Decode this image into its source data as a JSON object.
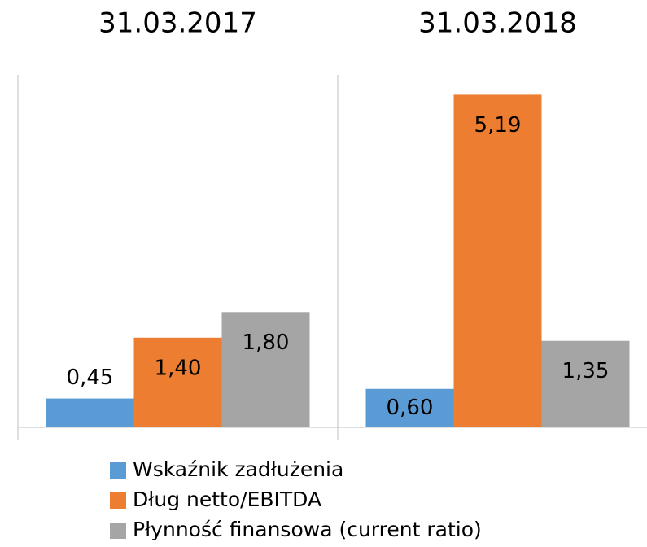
{
  "chart_data": {
    "type": "bar",
    "categories": [
      "31.03.2017",
      "31.03.2018"
    ],
    "series": [
      {
        "name": "Wskaźnik zadłużenia",
        "color": "#5b9bd5",
        "values": [
          0.45,
          0.6
        ],
        "value_labels": [
          "0,45",
          "0,60"
        ]
      },
      {
        "name": "Dług netto/EBITDA",
        "color": "#ed7d31",
        "values": [
          1.4,
          5.19
        ],
        "value_labels": [
          "1,40",
          "5,19"
        ]
      },
      {
        "name": "Płynność finansowa (current ratio)",
        "color": "#a5a5a5",
        "values": [
          1.8,
          1.35
        ],
        "value_labels": [
          "1,80",
          "1,35"
        ]
      }
    ],
    "ylim": [
      0,
      5.5
    ]
  }
}
